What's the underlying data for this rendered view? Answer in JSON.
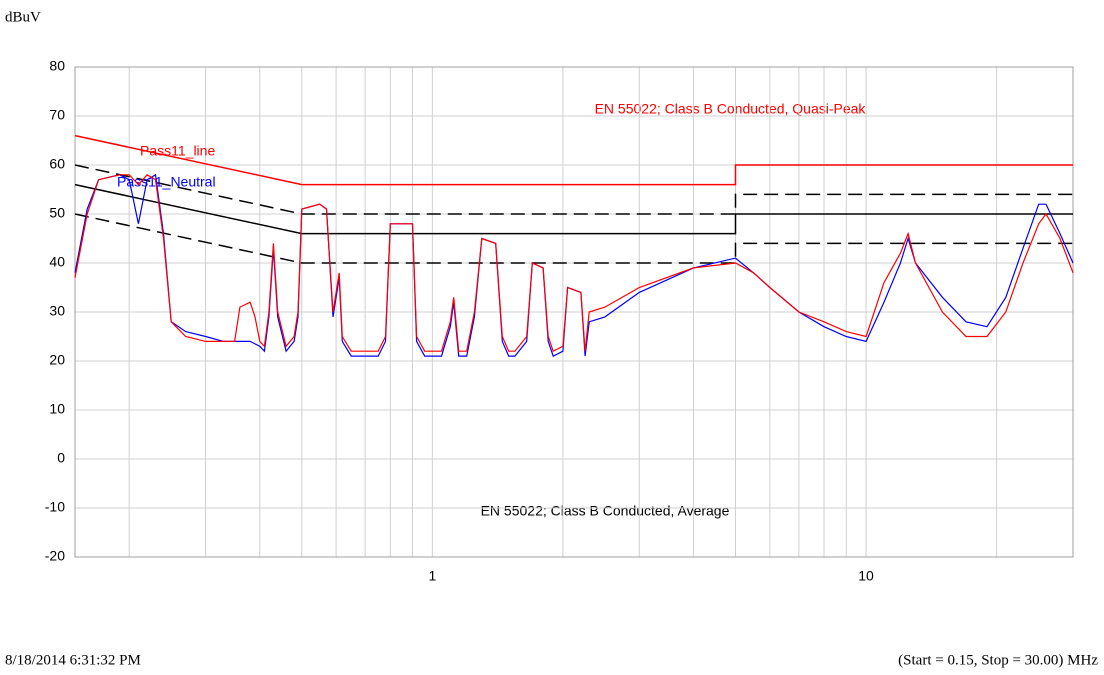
{
  "chart_data": {
    "type": "line",
    "y_label": "dBuV",
    "xlog": true,
    "grid": true,
    "xlim": [
      0.15,
      30
    ],
    "ylim": [
      -20,
      80
    ],
    "yticks": [
      -20,
      -10,
      0,
      10,
      20,
      30,
      40,
      50,
      60,
      70,
      80
    ],
    "xticks": [
      1,
      10
    ],
    "xgrid": [
      0.2,
      0.3,
      0.4,
      0.5,
      0.6,
      0.7,
      0.8,
      0.9,
      1,
      2,
      3,
      4,
      5,
      6,
      7,
      8,
      9,
      10,
      20,
      30
    ],
    "annotations": [
      "EN 55022; Class B Conducted, Quasi-Peak",
      "EN 55022; Class B Conducted, Average"
    ],
    "footer_left": "8/18/2014 6:31:32 PM",
    "footer_right": "(Start = 0.15, Stop = 30.00) MHz",
    "series": [
      {
        "color": "#ff0000",
        "dash": false,
        "x": [
          0.15,
          0.5,
          5,
          5,
          30
        ],
        "values": [
          66,
          56,
          56,
          60,
          60
        ]
      },
      {
        "color": "#000000",
        "dash": true,
        "x": [
          0.15,
          0.5,
          5,
          5,
          30
        ],
        "values": [
          60,
          50,
          50,
          54,
          54
        ]
      },
      {
        "color": "#000000",
        "dash": false,
        "x": [
          0.15,
          0.5,
          5,
          5,
          30
        ],
        "values": [
          56,
          46,
          46,
          50,
          50
        ]
      },
      {
        "color": "#000000",
        "dash": true,
        "x": [
          0.15,
          0.5,
          5,
          5,
          30
        ],
        "values": [
          50,
          40,
          40,
          44,
          44
        ]
      },
      {
        "name": "Pass11_Neutral",
        "color": "#0000ff",
        "dash": false,
        "x": [
          0.15,
          0.16,
          0.17,
          0.19,
          0.2,
          0.21,
          0.22,
          0.23,
          0.24,
          0.25,
          0.27,
          0.3,
          0.33,
          0.35,
          0.38,
          0.4,
          0.41,
          0.42,
          0.43,
          0.44,
          0.46,
          0.48,
          0.49,
          0.5,
          0.55,
          0.57,
          0.59,
          0.61,
          0.62,
          0.65,
          0.7,
          0.75,
          0.78,
          0.8,
          0.85,
          0.9,
          0.92,
          0.96,
          1.05,
          1.1,
          1.12,
          1.15,
          1.2,
          1.25,
          1.3,
          1.4,
          1.45,
          1.5,
          1.55,
          1.65,
          1.7,
          1.8,
          1.85,
          1.9,
          2.0,
          2.05,
          2.2,
          2.25,
          2.3,
          2.5,
          3,
          4,
          5,
          5.5,
          6,
          7,
          8,
          9,
          10,
          11,
          12,
          12.5,
          13,
          15,
          17,
          19,
          21,
          23,
          25,
          26,
          28,
          30
        ],
        "values": [
          38,
          51,
          57,
          58,
          57,
          48,
          57,
          58,
          46,
          28,
          26,
          25,
          24,
          24,
          24,
          23,
          22,
          29,
          43,
          29,
          22,
          24,
          29,
          51,
          52,
          51,
          29,
          37,
          24,
          21,
          21,
          21,
          24,
          48,
          48,
          48,
          24,
          21,
          21,
          27,
          32,
          21,
          21,
          29,
          45,
          44,
          24,
          21,
          21,
          24,
          40,
          39,
          24,
          21,
          22,
          35,
          34,
          21,
          28,
          29,
          34,
          39,
          41,
          38,
          35,
          30,
          27,
          25,
          24,
          32,
          40,
          45,
          40,
          33,
          28,
          27,
          33,
          43,
          52,
          52,
          46,
          40
        ]
      },
      {
        "name": "Pass11_line",
        "color": "#ff0000",
        "dash": false,
        "x": [
          0.15,
          0.16,
          0.17,
          0.19,
          0.2,
          0.21,
          0.22,
          0.23,
          0.24,
          0.25,
          0.27,
          0.3,
          0.33,
          0.35,
          0.36,
          0.38,
          0.39,
          0.4,
          0.41,
          0.42,
          0.43,
          0.44,
          0.46,
          0.48,
          0.49,
          0.5,
          0.55,
          0.57,
          0.59,
          0.61,
          0.62,
          0.65,
          0.7,
          0.75,
          0.78,
          0.8,
          0.85,
          0.9,
          0.92,
          0.96,
          1.05,
          1.1,
          1.12,
          1.15,
          1.2,
          1.25,
          1.3,
          1.4,
          1.45,
          1.5,
          1.55,
          1.65,
          1.7,
          1.8,
          1.85,
          1.9,
          2.0,
          2.05,
          2.2,
          2.25,
          2.3,
          2.5,
          3,
          4,
          5,
          5.5,
          6,
          7,
          8,
          9,
          10,
          11,
          12,
          12.5,
          13,
          15,
          17,
          19,
          21,
          23,
          25,
          26,
          28,
          30
        ],
        "values": [
          37,
          50,
          57,
          58,
          58,
          56,
          58,
          57,
          45,
          28,
          25,
          24,
          24,
          24,
          31,
          32,
          29,
          24,
          23,
          30,
          44,
          30,
          23,
          25,
          30,
          51,
          52,
          51,
          30,
          38,
          25,
          22,
          22,
          22,
          25,
          48,
          48,
          48,
          25,
          22,
          22,
          28,
          33,
          22,
          22,
          30,
          45,
          44,
          25,
          22,
          22,
          25,
          40,
          39,
          25,
          22,
          23,
          35,
          34,
          22,
          30,
          31,
          35,
          39,
          40,
          38,
          35,
          30,
          28,
          26,
          25,
          36,
          42,
          46,
          40,
          30,
          25,
          25,
          30,
          40,
          48,
          50,
          45,
          38
        ]
      }
    ]
  }
}
